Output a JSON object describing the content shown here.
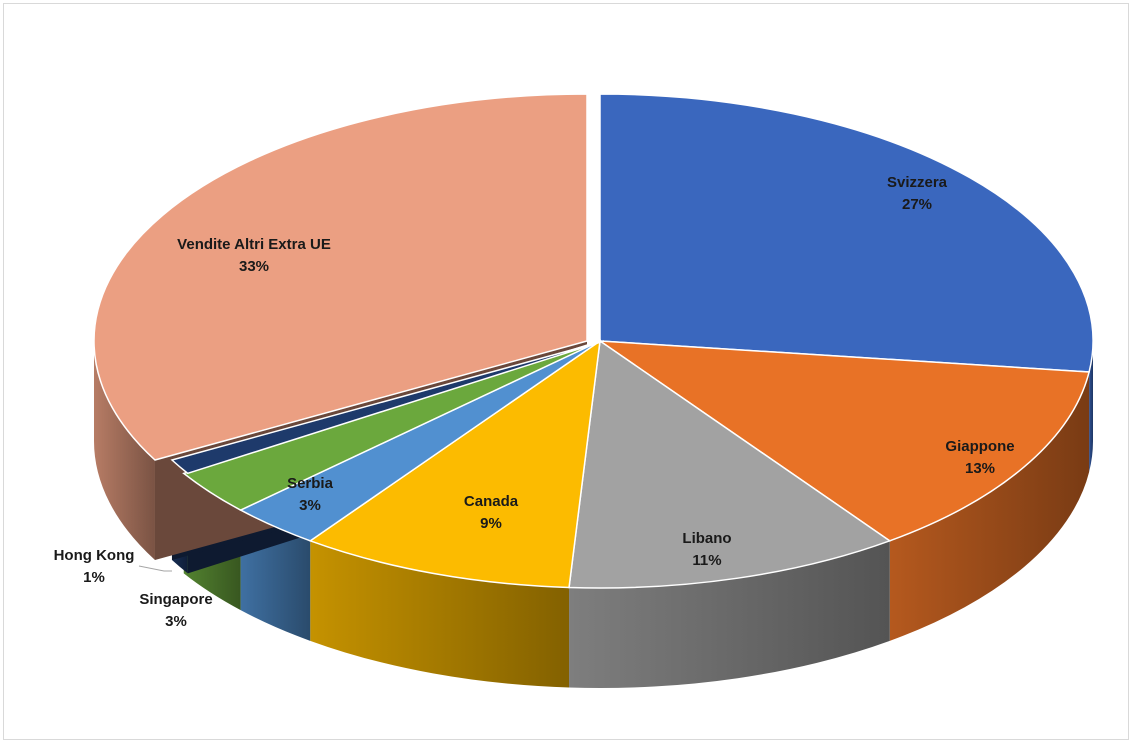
{
  "chart_data": {
    "type": "pie",
    "style": "3d-exploded-perspective",
    "title": "",
    "slices": [
      {
        "label": "Svizzera",
        "value": 27,
        "pct_label": "27%",
        "color": "#3a67be"
      },
      {
        "label": "Giappone",
        "value": 13,
        "pct_label": "13%",
        "color": "#e87226"
      },
      {
        "label": "Libano",
        "value": 11,
        "pct_label": "11%",
        "color": "#a2a2a2"
      },
      {
        "label": "Canada",
        "value": 9,
        "pct_label": "9%",
        "color": "#fcbb00"
      },
      {
        "label": "Serbia",
        "value": 3,
        "pct_label": "3%",
        "color": "#5190d0"
      },
      {
        "label": "Singapore",
        "value": 3,
        "pct_label": "3%",
        "color": "#6ba83d"
      },
      {
        "label": "Hong Kong",
        "value": 1,
        "pct_label": "1%",
        "color": "#1e3a6b"
      },
      {
        "label": "Vendite Altri Extra UE",
        "value": 33,
        "pct_label": "33%",
        "color": "#eb9f82"
      }
    ],
    "legend": "none"
  }
}
